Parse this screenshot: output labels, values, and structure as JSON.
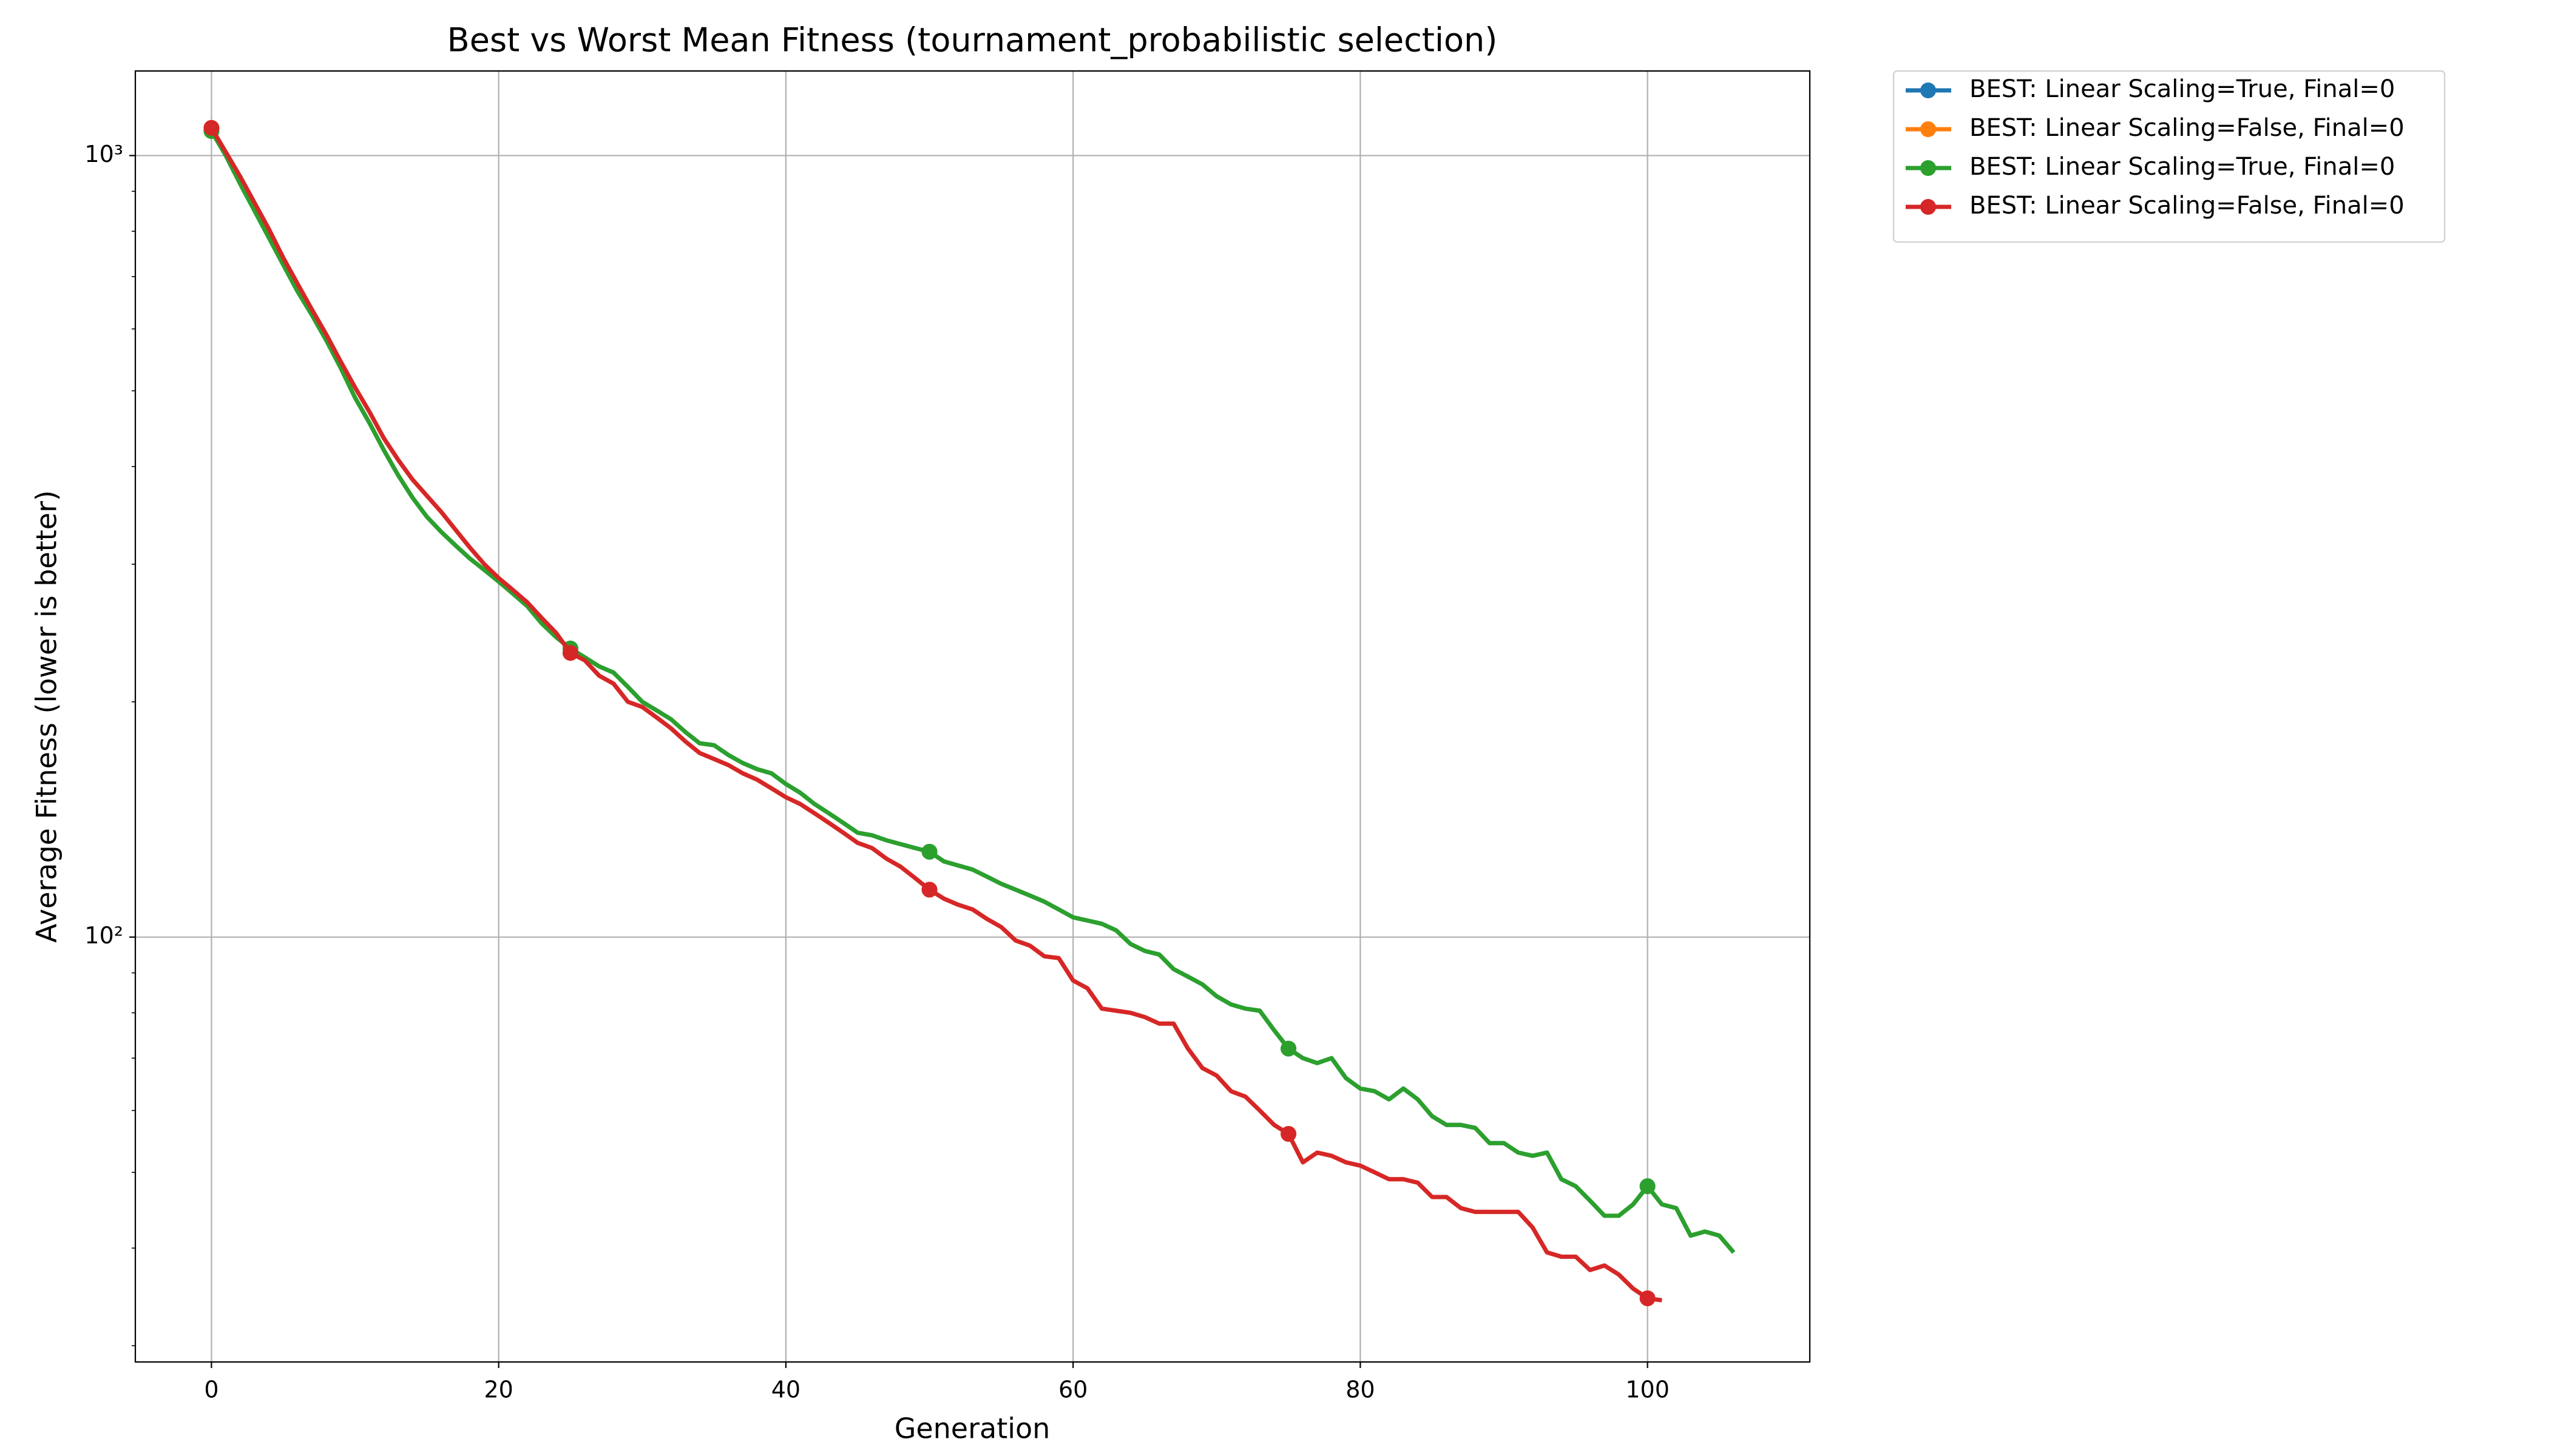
{
  "chart_data": {
    "type": "line",
    "title": "Best vs Worst Mean Fitness (tournament_probabilistic selection)",
    "x_label": "Generation",
    "y_label": "Average Fitness (lower is better)",
    "x": [
      0,
      1,
      2,
      3,
      4,
      5,
      6,
      7,
      8,
      9,
      10,
      11,
      12,
      13,
      14,
      15,
      16,
      17,
      18,
      19,
      20,
      21,
      22,
      23,
      24,
      25,
      26,
      27,
      28,
      29,
      30,
      31,
      32,
      33,
      34,
      35,
      36,
      37,
      38,
      39,
      40,
      41,
      42,
      43,
      44,
      45,
      46,
      47,
      48,
      49,
      50,
      51,
      52,
      53,
      54,
      55,
      56,
      57,
      58,
      59,
      60,
      61,
      62,
      63,
      64,
      65,
      66,
      67,
      68,
      69,
      70,
      71,
      72,
      73,
      74,
      75,
      76,
      77,
      78,
      79,
      80,
      81,
      82,
      83,
      84,
      85,
      86,
      87,
      88,
      89,
      90,
      91,
      92,
      93,
      94,
      95,
      96,
      97,
      98,
      99,
      100,
      101,
      102,
      103,
      104,
      105,
      106
    ],
    "series": [
      {
        "name": "BEST: Linear Scaling=True, Final=0",
        "color": "#1f77b4",
        "values": [
          1075,
          1000,
          920,
          850,
          785,
          725,
          670,
          625,
          580,
          535,
          490,
          455,
          420,
          390,
          365,
          345,
          330,
          317,
          305,
          295,
          285,
          275,
          265,
          252,
          242,
          234,
          228,
          222,
          218,
          209,
          200,
          195,
          190,
          183,
          177,
          176,
          171,
          167,
          164,
          162,
          157,
          153,
          148,
          144,
          140,
          136,
          135,
          133,
          131.5,
          130,
          128.6,
          125,
          123.5,
          122,
          119.5,
          117,
          115,
          113,
          111,
          108.5,
          106,
          105,
          104,
          102,
          98,
          96,
          95,
          91,
          89,
          87,
          84,
          82,
          81,
          80.5,
          76,
          72,
          70,
          69,
          70,
          66,
          64,
          63.5,
          62,
          64,
          62,
          59,
          57.5,
          57.5,
          57,
          54.5,
          54.5,
          53,
          52.5,
          53,
          49,
          48,
          46,
          44,
          44,
          45.5,
          48,
          45.5,
          45,
          41.5,
          42,
          41.5,
          39.5
        ]
      },
      {
        "name": "BEST: Linear Scaling=False, Final=0",
        "color": "#ff7f0e",
        "values": [
          1085,
          1010,
          940,
          870,
          805,
          740,
          685,
          635,
          590,
          545,
          505,
          470,
          435,
          408,
          385,
          367,
          350,
          332,
          315,
          300,
          288,
          278,
          268,
          256,
          245,
          231,
          226,
          216,
          211,
          200,
          197,
          191,
          185,
          178,
          172,
          169,
          166,
          162,
          159,
          155,
          151,
          148,
          144,
          140,
          136,
          132,
          130,
          126,
          123,
          119,
          115,
          112,
          110,
          108.5,
          105.5,
          103,
          99,
          97.5,
          94.5,
          94,
          88,
          86,
          81,
          80.5,
          80,
          79,
          77.5,
          77.5,
          72,
          68,
          66.5,
          63.5,
          62.5,
          60,
          57.5,
          56,
          51.5,
          53,
          52.5,
          51.5,
          51,
          50,
          49,
          49,
          48.5,
          46.5,
          46.5,
          45,
          44.5,
          44.5,
          44.5,
          44.5,
          42.5,
          39.5,
          39,
          39,
          37.5,
          38,
          37,
          35.5,
          34.5,
          34.3,
          null,
          null,
          null,
          null,
          null
        ]
      },
      {
        "name": "BEST: Linear Scaling=True, Final=0",
        "color": "#2ca02c",
        "values": [
          1075,
          1000,
          920,
          850,
          785,
          725,
          670,
          625,
          580,
          535,
          490,
          455,
          420,
          390,
          365,
          345,
          330,
          317,
          305,
          295,
          285,
          275,
          265,
          252,
          242,
          234,
          228,
          222,
          218,
          209,
          200,
          195,
          190,
          183,
          177,
          176,
          171,
          167,
          164,
          162,
          157,
          153,
          148,
          144,
          140,
          136,
          135,
          133,
          131.5,
          130,
          128.6,
          125,
          123.5,
          122,
          119.5,
          117,
          115,
          113,
          111,
          108.5,
          106,
          105,
          104,
          102,
          98,
          96,
          95,
          91,
          89,
          87,
          84,
          82,
          81,
          80.5,
          76,
          72,
          70,
          69,
          70,
          66,
          64,
          63.5,
          62,
          64,
          62,
          59,
          57.5,
          57.5,
          57,
          54.5,
          54.5,
          53,
          52.5,
          53,
          49,
          48,
          46,
          44,
          44,
          45.5,
          48,
          45.5,
          45,
          41.5,
          42,
          41.5,
          39.5
        ]
      },
      {
        "name": "BEST: Linear Scaling=False, Final=0",
        "color": "#d62728",
        "values": [
          1085,
          1010,
          940,
          870,
          805,
          740,
          685,
          635,
          590,
          545,
          505,
          470,
          435,
          408,
          385,
          367,
          350,
          332,
          315,
          300,
          288,
          278,
          268,
          256,
          245,
          231,
          226,
          216,
          211,
          200,
          197,
          191,
          185,
          178,
          172,
          169,
          166,
          162,
          159,
          155,
          151,
          148,
          144,
          140,
          136,
          132,
          130,
          126,
          123,
          119,
          115,
          112,
          110,
          108.5,
          105.5,
          103,
          99,
          97.5,
          94.5,
          94,
          88,
          86,
          81,
          80.5,
          80,
          79,
          77.5,
          77.5,
          72,
          68,
          66.5,
          63.5,
          62.5,
          60,
          57.5,
          56,
          51.5,
          53,
          52.5,
          51.5,
          51,
          50,
          49,
          49,
          48.5,
          46.5,
          46.5,
          45,
          44.5,
          44.5,
          44.5,
          44.5,
          42.5,
          39.5,
          39,
          39,
          37.5,
          38,
          37,
          35.5,
          34.5,
          34.3,
          null,
          null,
          null,
          null,
          null
        ]
      }
    ],
    "markevery": 25,
    "xlim": [
      -5.3,
      111.3
    ],
    "xticks": [
      0,
      20,
      40,
      60,
      80,
      100
    ],
    "ylim": [
      28.6,
      1283
    ],
    "yscale": "log",
    "yticks": [
      {
        "value": 1000,
        "label": "10³"
      },
      {
        "value": 100,
        "label": "10²"
      }
    ],
    "yminorticks": [
      30,
      40,
      50,
      60,
      70,
      80,
      90,
      200,
      300,
      400,
      500,
      600,
      700,
      800,
      900
    ],
    "grid": true,
    "legend": "outside-upper-right"
  }
}
